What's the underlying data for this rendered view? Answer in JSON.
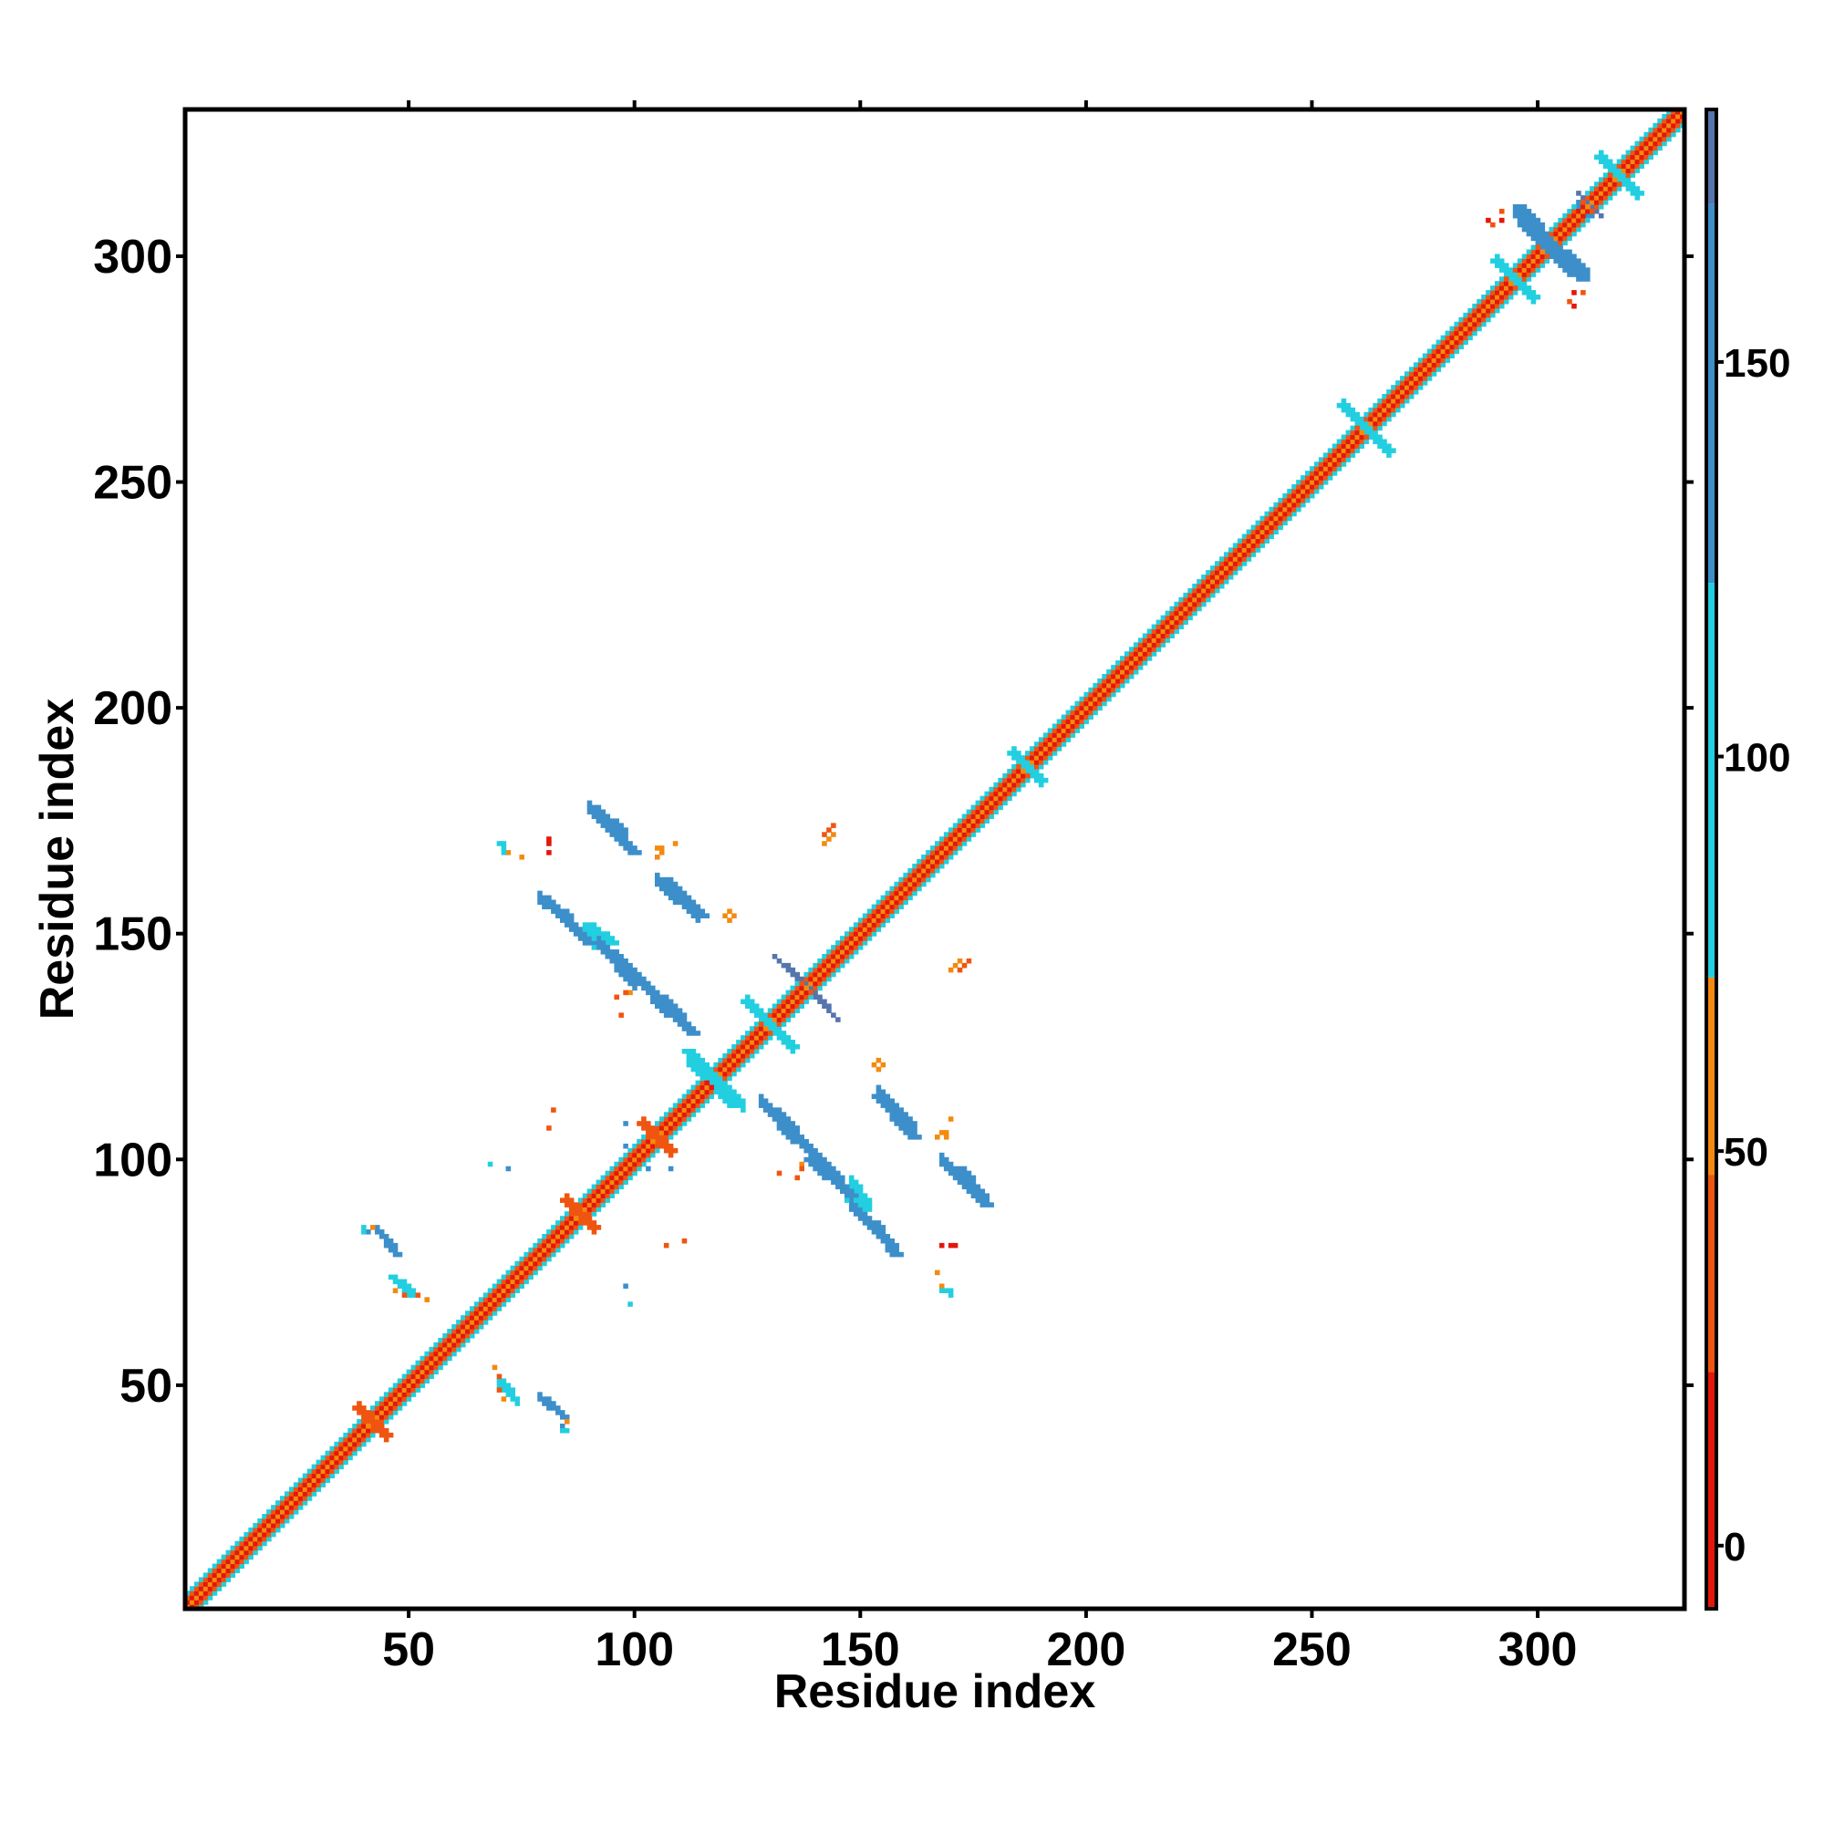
{
  "chart_data": {
    "type": "heatmap",
    "title": "",
    "xlabel": "Residue index",
    "ylabel": "Residue index",
    "xlim": [
      1,
      332
    ],
    "ylim": [
      1,
      332
    ],
    "x_ticks": [
      50,
      100,
      150,
      200,
      250,
      300
    ],
    "y_ticks": [
      50,
      100,
      150,
      200,
      250,
      300
    ],
    "x_tick_labels": [
      "50",
      "100",
      "150",
      "200",
      "250",
      "300"
    ],
    "y_tick_labels": [
      "50",
      "100",
      "150",
      "200",
      "250",
      "300"
    ],
    "grid": false,
    "colorbar": {
      "placement": "right",
      "range": [
        -8,
        182
      ],
      "ticks": [
        0,
        50,
        100,
        150
      ],
      "tick_labels": [
        "0",
        "50",
        "100",
        "150"
      ],
      "bands": [
        {
          "from": -8,
          "to": 22,
          "color": "#e3170a"
        },
        {
          "from": 22,
          "to": 47,
          "color": "#ef5510"
        },
        {
          "from": 47,
          "to": 72,
          "color": "#f38a0f"
        },
        {
          "from": 72,
          "to": 122,
          "color": "#22cfe0"
        },
        {
          "from": 122,
          "to": 170,
          "color": "#3d8fca"
        },
        {
          "from": 170,
          "to": 182,
          "color": "#5575ad"
        },
        {
          "from": 182,
          "to": 195,
          "color": "#ffffff"
        }
      ]
    },
    "value_classes": {
      "red": {
        "value": 5,
        "color": "#e3170a"
      },
      "orange_red": {
        "value": 35,
        "color": "#ef5510"
      },
      "orange": {
        "value": 60,
        "color": "#f38a0f"
      },
      "cyan": {
        "value": 95,
        "color": "#22cfe0"
      },
      "blue": {
        "value": 145,
        "color": "#3d8fca"
      },
      "steel": {
        "value": 175,
        "color": "#5575ad"
      }
    },
    "diagonal": {
      "start": 1,
      "end": 332,
      "bands": [
        {
          "offset": 0,
          "value": 60
        },
        {
          "offset": 1,
          "value": 5
        },
        {
          "offset": 2,
          "value": 35
        },
        {
          "offset": 3,
          "value": 95
        }
      ],
      "helix_blobs": [
        {
          "center": 118,
          "half_length": 5,
          "value": 95
        },
        {
          "center": 130,
          "half_length": 5,
          "value": 95
        },
        {
          "center": 187,
          "half_length": 3,
          "value": 95
        },
        {
          "center": 262,
          "half_length": 5,
          "value": 95
        },
        {
          "center": 295,
          "half_length": 4,
          "value": 95
        },
        {
          "center": 302,
          "half_length": 5,
          "value": 145
        },
        {
          "center": 318,
          "half_length": 4,
          "value": 95
        },
        {
          "center": 42,
          "half_length": 3,
          "value": 35
        },
        {
          "center": 88,
          "half_length": 3,
          "value": 35
        },
        {
          "center": 105,
          "half_length": 3,
          "value": 35
        }
      ]
    },
    "segments": [
      {
        "x1": 91,
        "y1": 176,
        "x2": 99,
        "y2": 168,
        "width": 3,
        "value": 145
      },
      {
        "x1": 106,
        "y1": 162,
        "x2": 114,
        "y2": 154,
        "width": 3,
        "value": 145
      },
      {
        "x1": 80,
        "y1": 157,
        "x2": 89,
        "y2": 148,
        "width": 3,
        "value": 145
      },
      {
        "x1": 89,
        "y1": 152,
        "x2": 94,
        "y2": 148,
        "width": 3,
        "value": 95
      },
      {
        "x1": 94,
        "y1": 146,
        "x2": 104,
        "y2": 136,
        "width": 3,
        "value": 145
      },
      {
        "x1": 104,
        "y1": 135,
        "x2": 112,
        "y2": 128,
        "width": 3,
        "value": 145
      },
      {
        "x1": 111,
        "y1": 124,
        "x2": 121,
        "y2": 112,
        "width": 3,
        "value": 95
      },
      {
        "x1": 130,
        "y1": 111,
        "x2": 137,
        "y2": 103,
        "width": 3,
        "value": 145
      },
      {
        "x1": 138,
        "y1": 100,
        "x2": 147,
        "y2": 92,
        "width": 3,
        "value": 145
      },
      {
        "x1": 147,
        "y1": 91,
        "x2": 150,
        "y2": 87,
        "width": 3,
        "value": 95
      },
      {
        "x1": 152,
        "y1": 86,
        "x2": 157,
        "y2": 79,
        "width": 3,
        "value": 145
      },
      {
        "x1": 153,
        "y1": 114,
        "x2": 161,
        "y2": 105,
        "width": 3,
        "value": 145
      },
      {
        "x1": 171,
        "y1": 98,
        "x2": 177,
        "y2": 90,
        "width": 3,
        "value": 145
      },
      {
        "x1": 43,
        "y1": 84,
        "x2": 47,
        "y2": 79,
        "width": 2,
        "value": 145
      },
      {
        "x1": 46,
        "y1": 74,
        "x2": 50,
        "y2": 70,
        "width": 2,
        "value": 95
      },
      {
        "x1": 70,
        "y1": 51,
        "x2": 73,
        "y2": 47,
        "width": 2,
        "value": 95
      },
      {
        "x1": 80,
        "y1": 47,
        "x2": 84,
        "y2": 43,
        "width": 2,
        "value": 145
      },
      {
        "x1": 134,
        "y1": 143,
        "x2": 145,
        "y2": 131,
        "width": 1,
        "value": 175
      },
      {
        "x1": 295,
        "y1": 311,
        "x2": 309,
        "y2": 295,
        "width": 3,
        "value": 145
      },
      {
        "x1": 310,
        "y1": 313,
        "x2": 314,
        "y2": 309,
        "width": 1,
        "value": 175
      },
      {
        "x1": 174,
        "y1": 144,
        "x2": 172,
        "y2": 142,
        "width": 1,
        "value": 35
      },
      {
        "x1": 144,
        "y1": 172,
        "x2": 142,
        "y2": 170,
        "width": 1,
        "value": 60
      }
    ],
    "points": [
      {
        "x": 70,
        "y": 170,
        "value": 95
      },
      {
        "x": 71,
        "y": 169,
        "value": 95
      },
      {
        "x": 72,
        "y": 168,
        "value": 60
      },
      {
        "x": 81,
        "y": 171,
        "value": 5
      },
      {
        "x": 81,
        "y": 170,
        "value": 5
      },
      {
        "x": 106,
        "y": 169,
        "value": 60
      },
      {
        "x": 106,
        "y": 168,
        "value": 60
      },
      {
        "x": 109,
        "y": 170,
        "value": 60
      },
      {
        "x": 120,
        "y": 154,
        "value": 60
      },
      {
        "x": 121,
        "y": 155,
        "value": 60
      },
      {
        "x": 114,
        "y": 153,
        "value": 35
      },
      {
        "x": 97,
        "y": 132,
        "value": 35
      },
      {
        "x": 99,
        "y": 137,
        "value": 60
      },
      {
        "x": 82,
        "y": 111,
        "value": 35
      },
      {
        "x": 98,
        "y": 108,
        "value": 145
      },
      {
        "x": 98,
        "y": 103,
        "value": 145
      },
      {
        "x": 99,
        "y": 102,
        "value": 95
      },
      {
        "x": 72,
        "y": 98,
        "value": 145
      },
      {
        "x": 137,
        "y": 98,
        "value": 35
      },
      {
        "x": 136,
        "y": 96,
        "value": 35
      },
      {
        "x": 153,
        "y": 121,
        "value": 60
      },
      {
        "x": 154,
        "y": 122,
        "value": 60
      },
      {
        "x": 167,
        "y": 105,
        "value": 60
      },
      {
        "x": 169,
        "y": 105,
        "value": 60
      },
      {
        "x": 170,
        "y": 109,
        "value": 35
      },
      {
        "x": 168,
        "y": 81,
        "value": 5
      },
      {
        "x": 170,
        "y": 81,
        "value": 5
      },
      {
        "x": 107,
        "y": 81,
        "value": 35
      },
      {
        "x": 167,
        "y": 75,
        "value": 60
      },
      {
        "x": 168,
        "y": 71,
        "value": 95
      },
      {
        "x": 170,
        "y": 71,
        "value": 95
      },
      {
        "x": 99,
        "y": 68,
        "value": 95
      },
      {
        "x": 49,
        "y": 70,
        "value": 35
      },
      {
        "x": 52,
        "y": 70,
        "value": 35
      },
      {
        "x": 41,
        "y": 84,
        "value": 145
      },
      {
        "x": 42,
        "y": 85,
        "value": 60
      },
      {
        "x": 69,
        "y": 54,
        "value": 60
      },
      {
        "x": 71,
        "y": 47,
        "value": 60
      },
      {
        "x": 84,
        "y": 40,
        "value": 95
      },
      {
        "x": 85,
        "y": 40,
        "value": 95
      },
      {
        "x": 289,
        "y": 308,
        "value": 5
      },
      {
        "x": 290,
        "y": 307,
        "value": 35
      },
      {
        "x": 308,
        "y": 292,
        "value": 5
      },
      {
        "x": 310,
        "y": 292,
        "value": 35
      },
      {
        "x": 311,
        "y": 309,
        "value": 145
      },
      {
        "x": 312,
        "y": 309,
        "value": 145
      }
    ]
  }
}
